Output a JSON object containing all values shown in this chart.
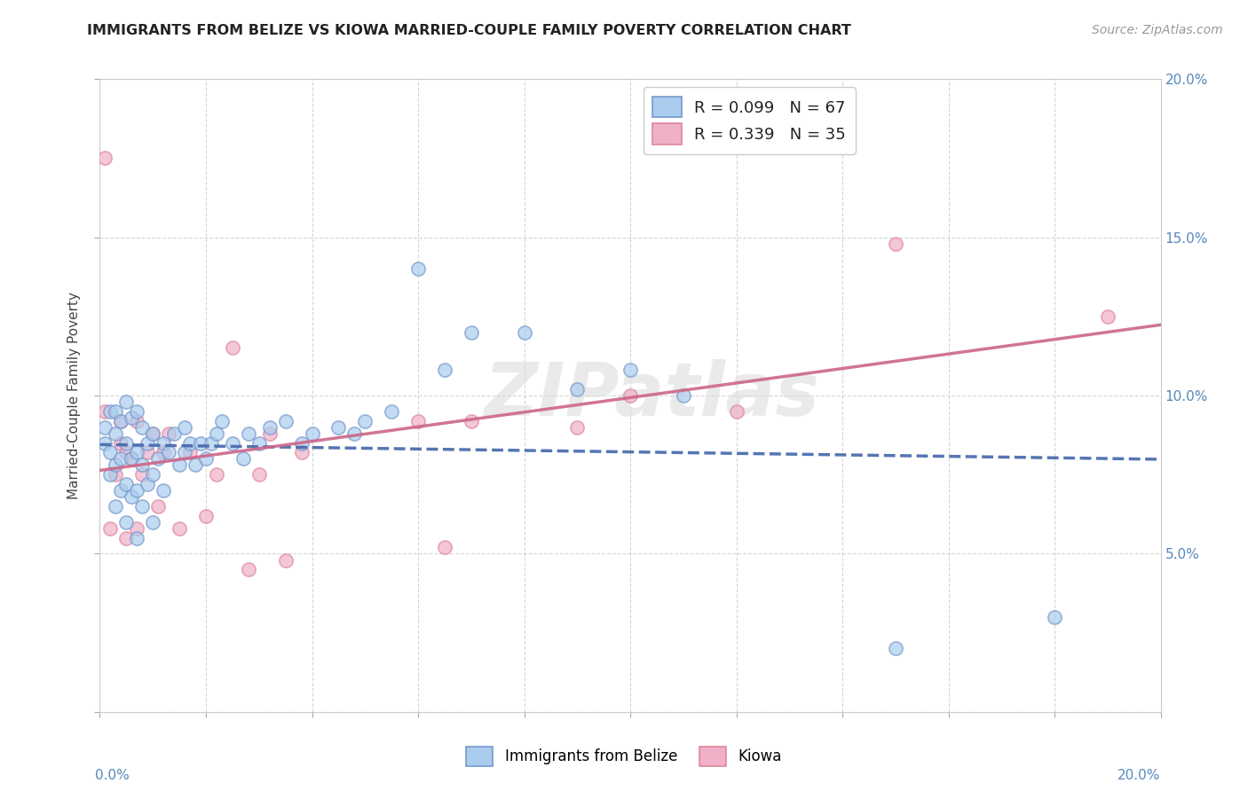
{
  "title": "IMMIGRANTS FROM BELIZE VS KIOWA MARRIED-COUPLE FAMILY POVERTY CORRELATION CHART",
  "source_text": "Source: ZipAtlas.com",
  "ylabel": "Married-Couple Family Poverty",
  "xlim": [
    0.0,
    0.2
  ],
  "ylim": [
    0.0,
    0.2
  ],
  "belize_color": "#aaccee",
  "kiowa_color": "#f0b0c8",
  "belize_edge": "#7799cc",
  "kiowa_edge": "#dd8899",
  "belize_line_color": "#4466aa",
  "kiowa_line_color": "#cc6688",
  "watermark": "ZIPatlas",
  "belize_x": [
    0.001,
    0.001,
    0.002,
    0.002,
    0.002,
    0.003,
    0.003,
    0.003,
    0.003,
    0.004,
    0.004,
    0.004,
    0.005,
    0.005,
    0.005,
    0.005,
    0.006,
    0.006,
    0.006,
    0.007,
    0.007,
    0.007,
    0.007,
    0.008,
    0.008,
    0.008,
    0.009,
    0.009,
    0.01,
    0.01,
    0.01,
    0.011,
    0.012,
    0.012,
    0.013,
    0.014,
    0.015,
    0.016,
    0.016,
    0.017,
    0.018,
    0.019,
    0.02,
    0.021,
    0.022,
    0.023,
    0.025,
    0.027,
    0.028,
    0.03,
    0.032,
    0.035,
    0.038,
    0.04,
    0.045,
    0.048,
    0.05,
    0.055,
    0.06,
    0.065,
    0.07,
    0.08,
    0.09,
    0.1,
    0.11,
    0.15,
    0.18
  ],
  "belize_y": [
    0.085,
    0.09,
    0.075,
    0.082,
    0.095,
    0.065,
    0.078,
    0.088,
    0.095,
    0.07,
    0.08,
    0.092,
    0.06,
    0.072,
    0.085,
    0.098,
    0.068,
    0.08,
    0.093,
    0.055,
    0.07,
    0.082,
    0.095,
    0.065,
    0.078,
    0.09,
    0.072,
    0.085,
    0.06,
    0.075,
    0.088,
    0.08,
    0.07,
    0.085,
    0.082,
    0.088,
    0.078,
    0.082,
    0.09,
    0.085,
    0.078,
    0.085,
    0.08,
    0.085,
    0.088,
    0.092,
    0.085,
    0.08,
    0.088,
    0.085,
    0.09,
    0.092,
    0.085,
    0.088,
    0.09,
    0.088,
    0.092,
    0.095,
    0.14,
    0.108,
    0.12,
    0.12,
    0.102,
    0.108,
    0.1,
    0.02,
    0.03
  ],
  "kiowa_x": [
    0.001,
    0.001,
    0.002,
    0.003,
    0.004,
    0.004,
    0.005,
    0.005,
    0.006,
    0.007,
    0.007,
    0.008,
    0.009,
    0.01,
    0.011,
    0.012,
    0.013,
    0.015,
    0.017,
    0.02,
    0.022,
    0.025,
    0.028,
    0.03,
    0.032,
    0.035,
    0.038,
    0.06,
    0.065,
    0.07,
    0.09,
    0.1,
    0.12,
    0.15,
    0.19
  ],
  "kiowa_y": [
    0.095,
    0.175,
    0.058,
    0.075,
    0.085,
    0.092,
    0.055,
    0.082,
    0.08,
    0.058,
    0.092,
    0.075,
    0.082,
    0.088,
    0.065,
    0.082,
    0.088,
    0.058,
    0.082,
    0.062,
    0.075,
    0.115,
    0.045,
    0.075,
    0.088,
    0.048,
    0.082,
    0.092,
    0.052,
    0.092,
    0.09,
    0.1,
    0.095,
    0.148,
    0.125
  ]
}
